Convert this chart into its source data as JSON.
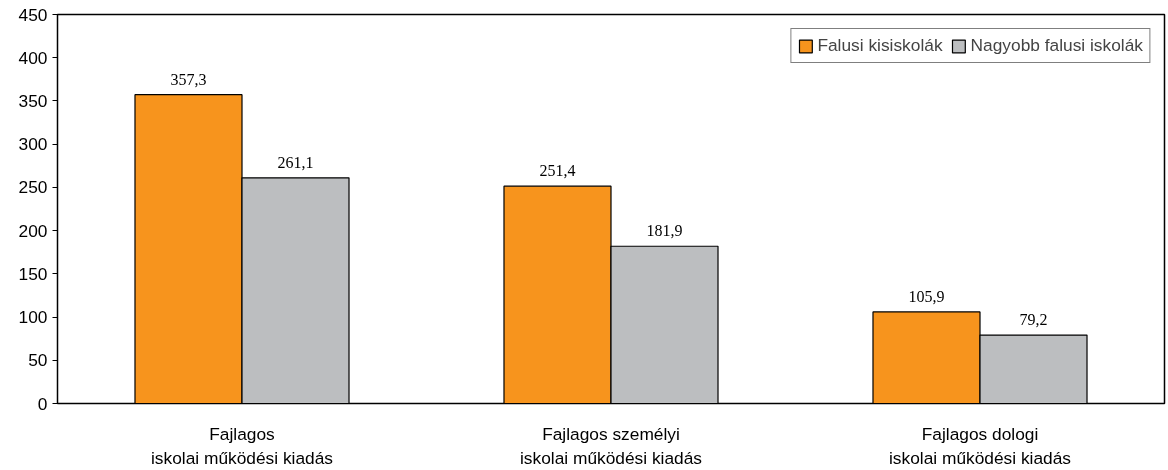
{
  "chart_data": {
    "type": "bar",
    "categories": [
      "Fajlagos\niskolai működési kiadás",
      "Fajlagos személyi\niskolai működési kiadás",
      "Fajlagos dologi\niskolai működési kiadás"
    ],
    "series": [
      {
        "name": "Falusi kisiskolák",
        "color": "#f7941d",
        "values": [
          357.3,
          251.4,
          105.9
        ],
        "value_labels": [
          "357,3",
          "251,4",
          "105,9"
        ]
      },
      {
        "name": "Nagyobb falusi iskolák",
        "color": "#bcbec0",
        "values": [
          261.1,
          181.9,
          79.2
        ],
        "value_labels": [
          "261,1",
          "181,9",
          "79,2"
        ]
      }
    ],
    "ylim": [
      0,
      450
    ],
    "yticks": [
      0,
      50,
      100,
      150,
      200,
      250,
      300,
      350,
      400,
      450
    ],
    "grid": false,
    "legend": "top right"
  }
}
